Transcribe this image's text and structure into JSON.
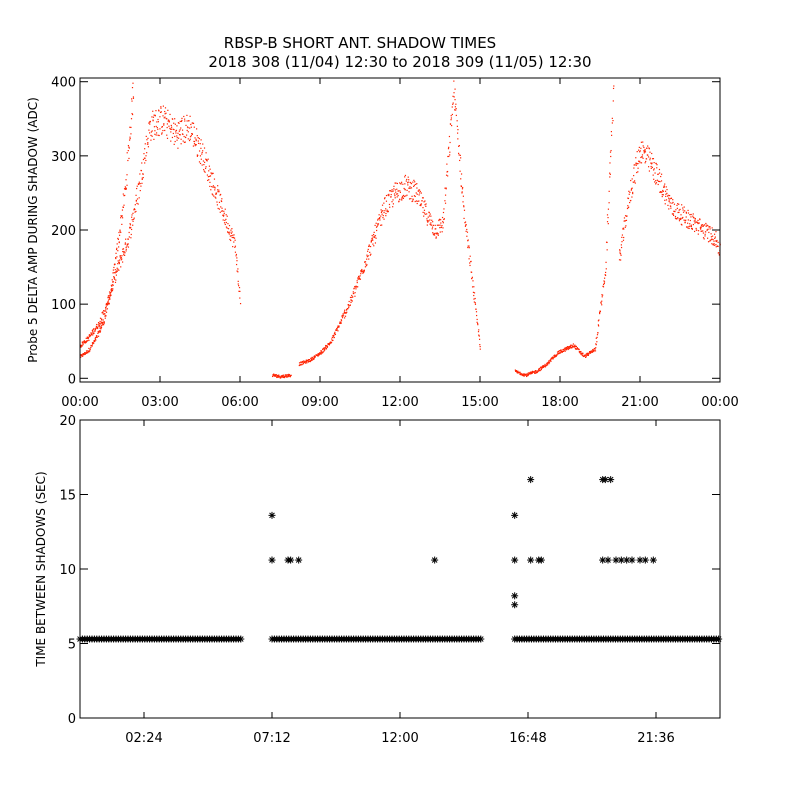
{
  "title_line1": "RBSP-B SHORT ANT. SHADOW TIMES",
  "title_line2": "2018 308 (11/04) 12:30 to 2018 309 (11/05) 12:30",
  "colors": {
    "shadow_amp": "#ff2200",
    "interval": "#000000",
    "axis": "#000000"
  },
  "chart_data": [
    {
      "type": "scatter",
      "name": "shadow-amplitude",
      "xlabel": "",
      "ylabel": "Probe 5 DELTA AMP DURING SHADOW (ADC)",
      "x_unit": "hours",
      "xlim": [
        0,
        24
      ],
      "ylim": [
        -5,
        405
      ],
      "x_ticks": [
        0,
        3,
        6,
        9,
        12,
        15,
        18,
        21,
        24
      ],
      "x_tick_labels": [
        "00:00",
        "03:00",
        "06:00",
        "09:00",
        "12:00",
        "15:00",
        "18:00",
        "21:00",
        "00:00"
      ],
      "y_ticks": [
        0,
        100,
        200,
        300,
        400
      ],
      "y_tick_labels": [
        "0",
        "100",
        "200",
        "300",
        "400"
      ],
      "marker": "dot",
      "series": [
        {
          "segments": [
            {
              "x": [
                0.0,
                0.3,
                0.6,
                0.9,
                1.2,
                1.4,
                1.7,
                2.0
              ],
              "y": [
                30,
                38,
                55,
                80,
                130,
                180,
                260,
                400
              ]
            },
            {
              "x": [
                0.0,
                0.3,
                0.7,
                1.0,
                1.4,
                1.8,
                2.1,
                2.6,
                3.1,
                3.6,
                4.1,
                4.6,
                5.0,
                5.4,
                5.8,
                6.0
              ],
              "y": [
                45,
                55,
                75,
                100,
                150,
                190,
                240,
                340,
                350,
                330,
                340,
                300,
                260,
                220,
                180,
                100
              ]
            },
            {
              "x": [
                7.2,
                7.5,
                7.9
              ],
              "y": [
                5,
                3,
                5
              ]
            },
            {
              "x": [
                8.2,
                8.6,
                9.0,
                9.4,
                9.8,
                10.2,
                10.6,
                11.0,
                11.4,
                11.8,
                12.2,
                12.6,
                13.0,
                13.3,
                13.6,
                14.0,
                14.4,
                14.8,
                15.0
              ],
              "y": [
                20,
                25,
                35,
                50,
                80,
                110,
                150,
                190,
                230,
                250,
                260,
                250,
                220,
                200,
                210,
                390,
                220,
                100,
                40
              ]
            },
            {
              "x": [
                16.3,
                16.7,
                17.1,
                17.5,
                17.9,
                18.2,
                18.5,
                18.9,
                19.3,
                19.7,
                20.0
              ],
              "y": [
                10,
                5,
                10,
                20,
                35,
                40,
                45,
                30,
                40,
                150,
                400
              ]
            },
            {
              "x": [
                20.2,
                20.6,
                21.0,
                21.4,
                21.8,
                22.2,
                22.6,
                23.0,
                23.4,
                23.8,
                24.0
              ],
              "y": [
                160,
                250,
                310,
                290,
                260,
                230,
                220,
                210,
                200,
                190,
                170
              ]
            }
          ]
        }
      ]
    },
    {
      "type": "scatter",
      "name": "time-between-shadows",
      "xlabel": "",
      "ylabel": "TIME BETWEEN SHADOWS (SEC)",
      "x_unit": "hours",
      "xlim": [
        0.0,
        24.0
      ],
      "ylim": [
        0,
        20
      ],
      "x_ticks": [
        2.4,
        7.2,
        12.0,
        16.8,
        21.6
      ],
      "x_tick_labels": [
        "02:24",
        "07:12",
        "12:00",
        "16:48",
        "21:36"
      ],
      "y_ticks": [
        0,
        5,
        10,
        15,
        20
      ],
      "y_tick_labels": [
        "0",
        "5",
        "10",
        "15",
        "20"
      ],
      "marker": "asterisk",
      "baseline": {
        "y": 5.3,
        "x_ranges": [
          [
            0.0,
            6.05
          ],
          [
            7.2,
            15.1
          ],
          [
            16.3,
            24.0
          ]
        ]
      },
      "points": [
        {
          "x": 7.2,
          "y": 13.6
        },
        {
          "x": 7.2,
          "y": 10.6
        },
        {
          "x": 7.8,
          "y": 10.6
        },
        {
          "x": 7.9,
          "y": 10.6
        },
        {
          "x": 8.2,
          "y": 10.6
        },
        {
          "x": 13.3,
          "y": 10.6
        },
        {
          "x": 16.3,
          "y": 13.6
        },
        {
          "x": 16.3,
          "y": 10.6
        },
        {
          "x": 16.3,
          "y": 8.2
        },
        {
          "x": 16.3,
          "y": 7.6
        },
        {
          "x": 16.9,
          "y": 16.0
        },
        {
          "x": 16.9,
          "y": 10.6
        },
        {
          "x": 17.2,
          "y": 10.6
        },
        {
          "x": 17.3,
          "y": 10.6
        },
        {
          "x": 19.6,
          "y": 16.0
        },
        {
          "x": 19.7,
          "y": 16.0
        },
        {
          "x": 19.9,
          "y": 16.0
        },
        {
          "x": 19.6,
          "y": 10.6
        },
        {
          "x": 19.8,
          "y": 10.6
        },
        {
          "x": 20.1,
          "y": 10.6
        },
        {
          "x": 20.3,
          "y": 10.6
        },
        {
          "x": 20.5,
          "y": 10.6
        },
        {
          "x": 20.7,
          "y": 10.6
        },
        {
          "x": 21.0,
          "y": 10.6
        },
        {
          "x": 21.2,
          "y": 10.6
        },
        {
          "x": 21.5,
          "y": 10.6
        }
      ]
    }
  ]
}
